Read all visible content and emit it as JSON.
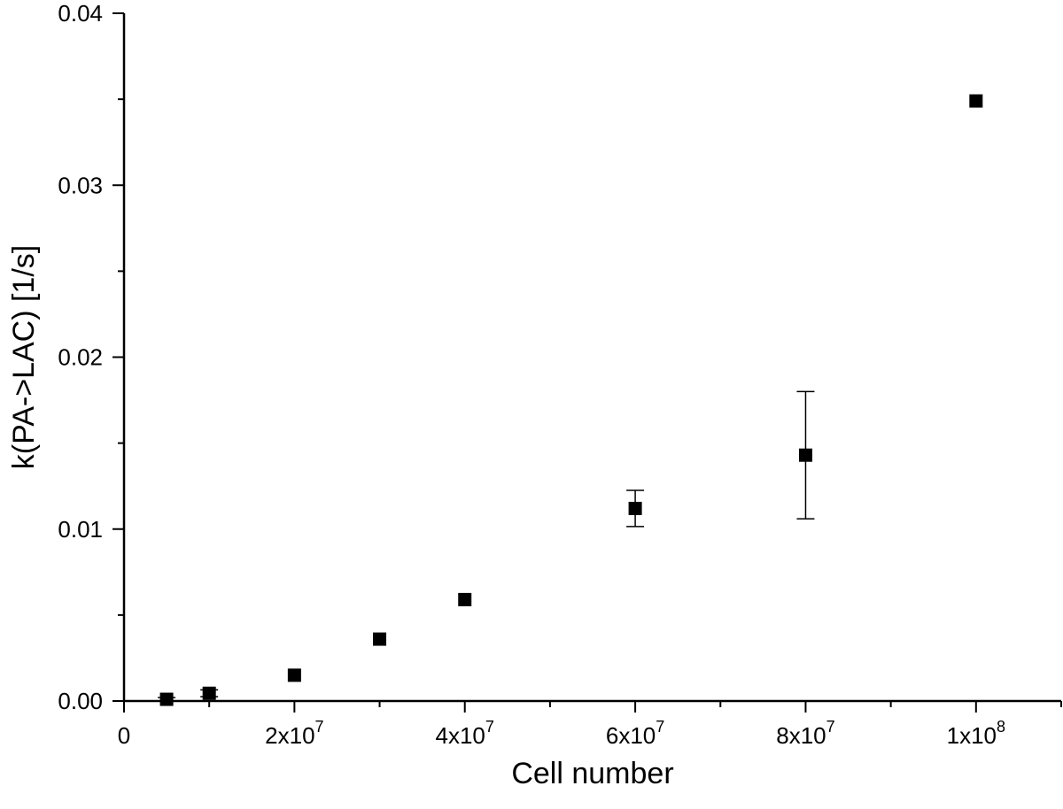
{
  "chart_data": {
    "type": "scatter",
    "title": "",
    "xlabel": "Cell number",
    "ylabel": "k(PA->LAC) [1/s]",
    "xlim": [
      0,
      110000000
    ],
    "ylim": [
      0,
      0.04
    ],
    "grid": false,
    "legend": "none",
    "marker": "filled-square",
    "color": "#000000",
    "x_ticks": [
      {
        "value": 0,
        "mantissa": "0",
        "exp": ""
      },
      {
        "value": 20000000,
        "mantissa": "2x10",
        "exp": "7"
      },
      {
        "value": 40000000,
        "mantissa": "4x10",
        "exp": "7"
      },
      {
        "value": 60000000,
        "mantissa": "6x10",
        "exp": "7"
      },
      {
        "value": 80000000,
        "mantissa": "8x10",
        "exp": "7"
      },
      {
        "value": 100000000,
        "mantissa": "1x10",
        "exp": "8"
      }
    ],
    "x_minor_step": 10000000,
    "y_ticks": [
      {
        "value": 0,
        "label": "0.00"
      },
      {
        "value": 0.01,
        "label": "0.01"
      },
      {
        "value": 0.02,
        "label": "0.02"
      },
      {
        "value": 0.03,
        "label": "0.03"
      },
      {
        "value": 0.04,
        "label": "0.04"
      }
    ],
    "y_minor_step": 0.005,
    "points": [
      {
        "x": 5000000,
        "y": 0.0001,
        "err": 0.0001
      },
      {
        "x": 10000000,
        "y": 0.00045,
        "err": 0.0002
      },
      {
        "x": 20000000,
        "y": 0.0015,
        "err": 0
      },
      {
        "x": 30000000,
        "y": 0.0036,
        "err": 0
      },
      {
        "x": 40000000,
        "y": 0.0059,
        "err": 0
      },
      {
        "x": 60000000,
        "y": 0.0112,
        "err": 0.00105
      },
      {
        "x": 80000000,
        "y": 0.0143,
        "err": 0.0037
      },
      {
        "x": 100000000,
        "y": 0.0349,
        "err": 0
      }
    ]
  }
}
